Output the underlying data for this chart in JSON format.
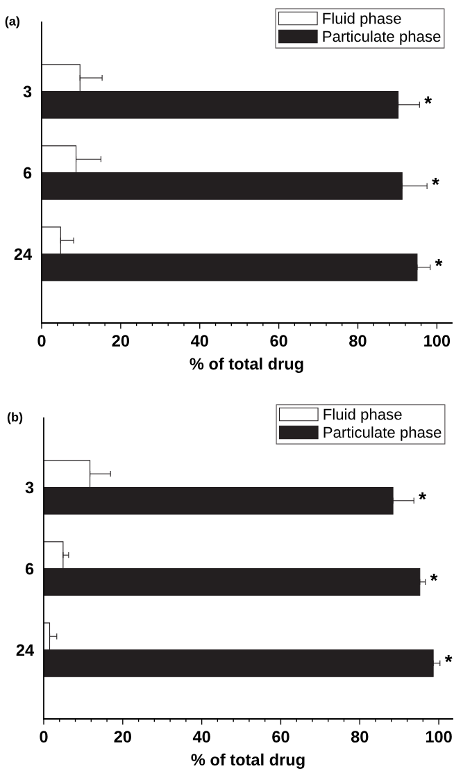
{
  "chart_data": [
    {
      "type": "bar",
      "orientation": "horizontal",
      "title": "(a)",
      "xlabel": "% of total drug",
      "categories": [
        "3",
        "6",
        "24"
      ],
      "series": [
        {
          "name": "Fluid phase",
          "color": "#ffffff",
          "values": [
            9.7,
            8.7,
            4.8
          ],
          "errors": [
            5.6,
            6.3,
            3.3
          ]
        },
        {
          "name": "Particulate phase",
          "color": "#231f20",
          "values": [
            90.2,
            91.2,
            95.0
          ],
          "errors": [
            5.4,
            6.3,
            3.3
          ]
        }
      ],
      "xlim": [
        0,
        103.8
      ],
      "xticks": [
        0,
        {
          "value": 4,
          "label": null
        },
        {
          "value": 8,
          "label": null
        },
        {
          "value": 12,
          "label": null
        },
        {
          "value": 16,
          "label": null
        },
        20,
        {
          "value": 24,
          "label": null
        },
        {
          "value": 28,
          "label": null
        },
        {
          "value": 32,
          "label": null
        },
        {
          "value": 36,
          "label": null
        },
        40,
        {
          "value": 44,
          "label": null
        },
        {
          "value": 48,
          "label": null
        },
        {
          "value": 52,
          "label": null
        },
        {
          "value": 56,
          "label": null
        },
        60,
        {
          "value": 64,
          "label": null
        },
        {
          "value": 68,
          "label": null
        },
        {
          "value": 72,
          "label": null
        },
        {
          "value": 76,
          "label": null
        },
        80,
        {
          "value": 84,
          "label": null
        },
        {
          "value": 88,
          "label": null
        },
        {
          "value": 92,
          "label": null
        },
        {
          "value": 96,
          "label": null
        },
        100
      ],
      "annotations": [
        "*",
        "*",
        "*"
      ],
      "legend": "top right",
      "grid": false
    },
    {
      "type": "bar",
      "orientation": "horizontal",
      "title": "(b)",
      "xlabel": "% of total drug",
      "categories": [
        "3",
        "6",
        "24"
      ],
      "series": [
        {
          "name": "Fluid phase",
          "color": "#ffffff",
          "values": [
            11.7,
            4.9,
            1.5
          ],
          "errors": [
            5.2,
            1.4,
            1.8
          ]
        },
        {
          "name": "Particulate phase",
          "color": "#231f20",
          "values": [
            88.4,
            95.2,
            98.6
          ],
          "errors": [
            5.3,
            1.4,
            1.7
          ]
        }
      ],
      "xlim": [
        0,
        103.5
      ],
      "xticks": [
        0,
        {
          "value": 4,
          "label": null
        },
        {
          "value": 8,
          "label": null
        },
        {
          "value": 12,
          "label": null
        },
        {
          "value": 16,
          "label": null
        },
        20,
        {
          "value": 24,
          "label": null
        },
        {
          "value": 28,
          "label": null
        },
        {
          "value": 32,
          "label": null
        },
        {
          "value": 36,
          "label": null
        },
        40,
        {
          "value": 44,
          "label": null
        },
        {
          "value": 48,
          "label": null
        },
        {
          "value": 52,
          "label": null
        },
        {
          "value": 56,
          "label": null
        },
        60,
        {
          "value": 64,
          "label": null
        },
        {
          "value": 68,
          "label": null
        },
        {
          "value": 72,
          "label": null
        },
        {
          "value": 76,
          "label": null
        },
        80,
        {
          "value": 84,
          "label": null
        },
        {
          "value": 88,
          "label": null
        },
        {
          "value": 92,
          "label": null
        },
        {
          "value": 96,
          "label": null
        },
        100
      ],
      "annotations": [
        "*",
        "*",
        "*"
      ],
      "legend": "top right",
      "grid": false
    }
  ]
}
